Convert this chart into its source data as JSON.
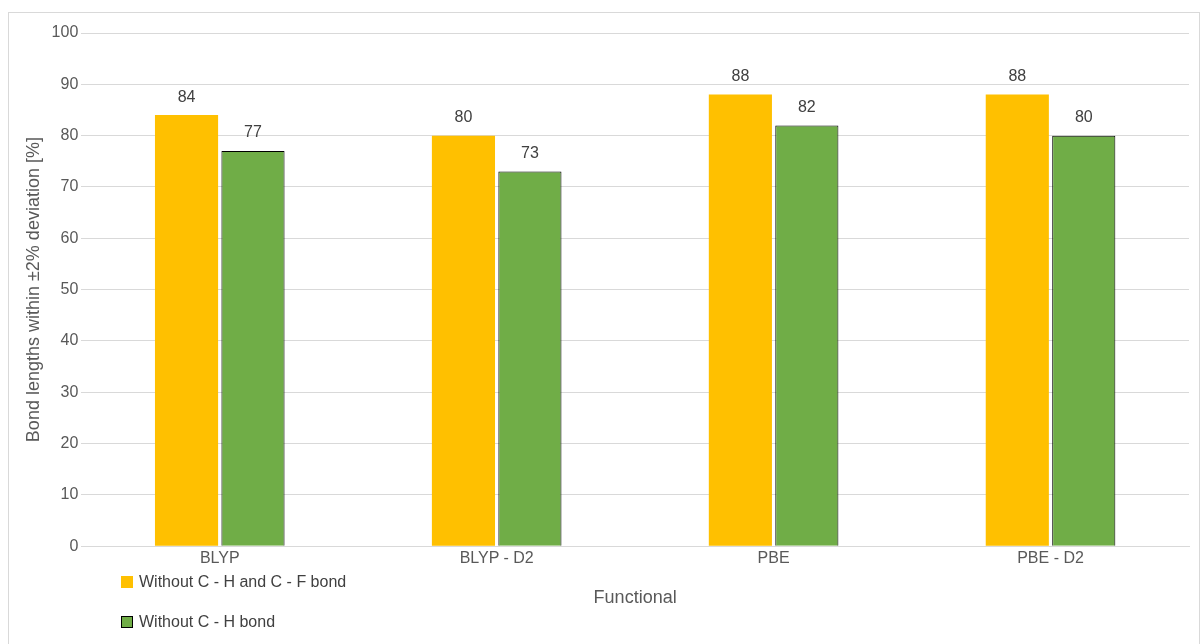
{
  "chart_data": {
    "type": "bar",
    "xlabel": "Functional",
    "ylabel": "Bond lengths within ±2% deviation [%]",
    "categories": [
      "BLYP",
      "BLYP - D2",
      "PBE",
      "PBE - D2"
    ],
    "series": [
      {
        "name": "Without C - H and C - F bond",
        "color": "#ffc000",
        "values": [
          84,
          80,
          88,
          88
        ]
      },
      {
        "name": "Without C - H bond",
        "color": "#70ad47",
        "values": [
          77,
          73,
          82,
          80
        ]
      }
    ],
    "ylim": [
      0,
      100
    ],
    "yticks": [
      0,
      10,
      20,
      30,
      40,
      50,
      60,
      70,
      80,
      90,
      100
    ],
    "grid": "y",
    "legend": "bottom left",
    "data_labels": true
  }
}
